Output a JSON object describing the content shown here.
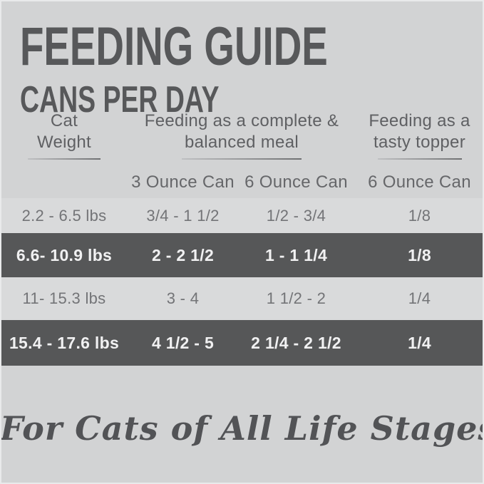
{
  "header": {
    "title": "FEEDING GUIDE",
    "subtitle": "CANS PER DAY"
  },
  "table": {
    "column_groups": [
      {
        "line1": "Cat",
        "line2": "Weight"
      },
      {
        "line1": "Feeding as a complete &",
        "line2": "balanced meal"
      },
      {
        "line1": "Feeding as a",
        "line2": "tasty topper"
      }
    ],
    "sub_headers": [
      "3 Ounce Can",
      "6 Ounce Can",
      "6 Ounce Can"
    ],
    "rows": [
      {
        "weight": "2.2 - 6.5 lbs",
        "three_oz_can": "3/4 - 1 1/2",
        "six_oz_can_meal": "1/2 - 3/4",
        "six_oz_can_topper": "1/8",
        "highlighted": false
      },
      {
        "weight": "6.6- 10.9 lbs",
        "three_oz_can": "2 - 2 1/2",
        "six_oz_can_meal": "1 - 1 1/4",
        "six_oz_can_topper": "1/8",
        "highlighted": true
      },
      {
        "weight": "11- 15.3 lbs",
        "three_oz_can": "3 - 4",
        "six_oz_can_meal": "1 1/2 - 2",
        "six_oz_can_topper": "1/4",
        "highlighted": false
      },
      {
        "weight": "15.4 - 17.6 lbs",
        "three_oz_can": "4 1/2 - 5",
        "six_oz_can_meal": "2 1/4 - 2 1/2",
        "six_oz_can_topper": "1/4",
        "highlighted": true
      }
    ]
  },
  "footer": {
    "tagline": "For Cats of All Life Stages"
  },
  "colors": {
    "background": "#d2d3d4",
    "light_row": "#d9dadb",
    "dark_row": "#565758",
    "heading_text": "#57585a",
    "body_text": "#737477",
    "dark_row_text": "#f1f1f2",
    "frame": "#e9eaeb"
  }
}
